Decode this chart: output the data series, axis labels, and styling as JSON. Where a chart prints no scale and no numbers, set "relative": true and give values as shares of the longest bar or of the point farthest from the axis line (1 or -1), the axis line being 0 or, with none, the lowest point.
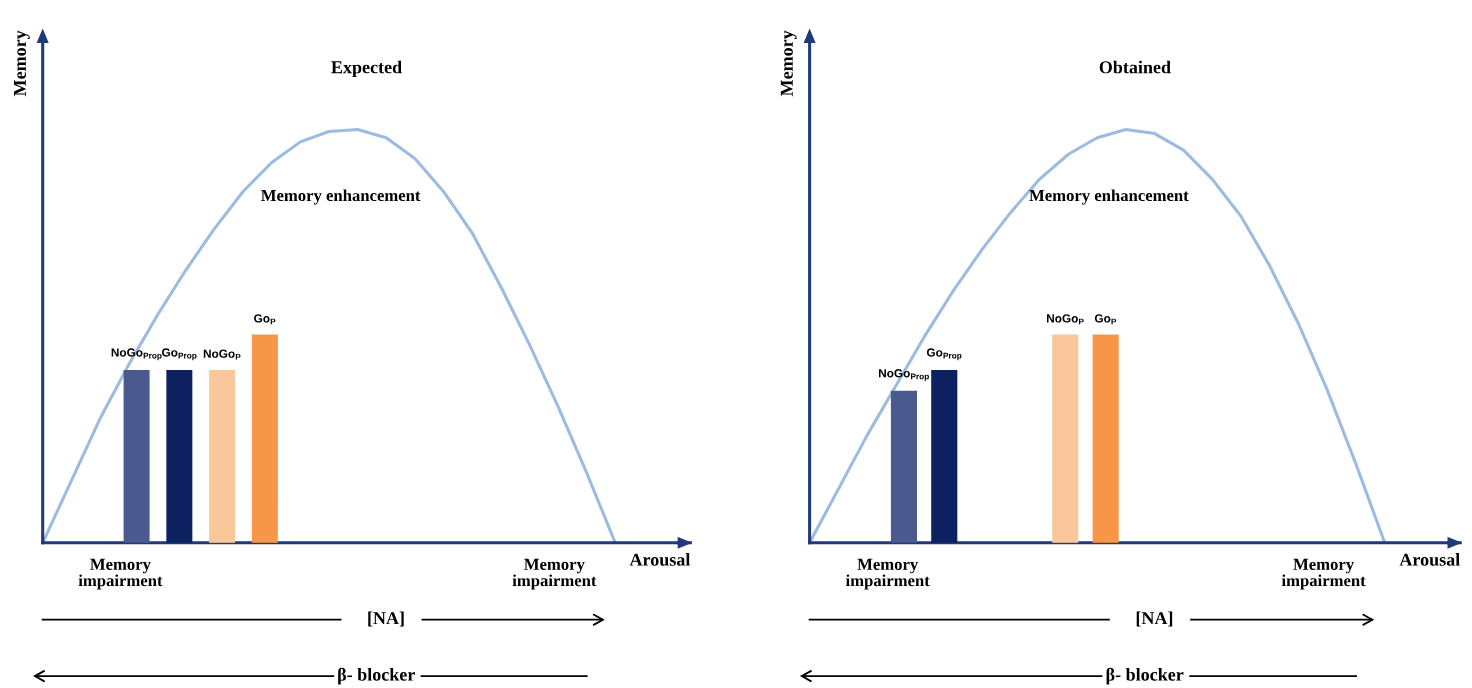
{
  "chart_data": [
    {
      "type": "line",
      "title": "Expected",
      "xlabel": "Arousal",
      "ylabel": "Memory",
      "relative": true,
      "color": "#9dbbe0",
      "categories": [
        null,
        null,
        null,
        null,
        null,
        null,
        null,
        null,
        null,
        null,
        null,
        null,
        null,
        null,
        null,
        null,
        null,
        null,
        null,
        null,
        null
      ],
      "values": [
        0,
        0.15,
        0.3,
        0.43,
        0.55,
        0.66,
        0.76,
        0.85,
        0.92,
        0.97,
        0.995,
        1,
        0.98,
        0.93,
        0.85,
        0.75,
        0.62,
        0.48,
        0.33,
        0.17,
        0
      ],
      "annotations": [
        "Memory enhancement",
        "Memory\nimpairment",
        "Memory\nimpairment",
        "[NA]",
        "β- blocker"
      ]
    },
    {
      "type": "bar",
      "relative": true,
      "categories": [
        "NoGo$_{Prop}$",
        "Go$_{Prop}$",
        "NoGo$_{P}$",
        "Go$_{P}$"
      ],
      "values": [
        0.83,
        0.83,
        0.83,
        1
      ],
      "colors": [
        "#4a5a8f",
        "#0d2160",
        "#f9c79b",
        "#f79646"
      ]
    },
    {
      "type": "line",
      "title": "Obtained",
      "xlabel": "Arousal",
      "ylabel": "Memory",
      "relative": true,
      "color": "#9dbbe0",
      "categories": [
        null,
        null,
        null,
        null,
        null,
        null,
        null,
        null,
        null,
        null,
        null,
        null,
        null,
        null,
        null,
        null,
        null,
        null,
        null,
        null,
        null
      ],
      "values": [
        0,
        0.13,
        0.26,
        0.38,
        0.5,
        0.61,
        0.71,
        0.8,
        0.88,
        0.94,
        0.98,
        1,
        0.99,
        0.95,
        0.88,
        0.79,
        0.67,
        0.53,
        0.37,
        0.19,
        0
      ],
      "annotations": [
        "Memory enhancement",
        "Memory\nimpairment",
        "Memory\nimpairment",
        "[NA]",
        "β- blocker"
      ]
    },
    {
      "type": "bar",
      "relative": true,
      "categories": [
        "NoGo$_{Prop}$",
        "Go$_{Prop}$",
        null,
        null,
        "NoGo$_{P}$",
        "Go$_{P}$"
      ],
      "values": [
        0.73,
        0.83,
        null,
        null,
        1,
        1
      ],
      "colors": [
        "#4a5a8f",
        "#0d2160",
        null,
        null,
        "#f9c79b",
        "#f79646"
      ]
    }
  ]
}
